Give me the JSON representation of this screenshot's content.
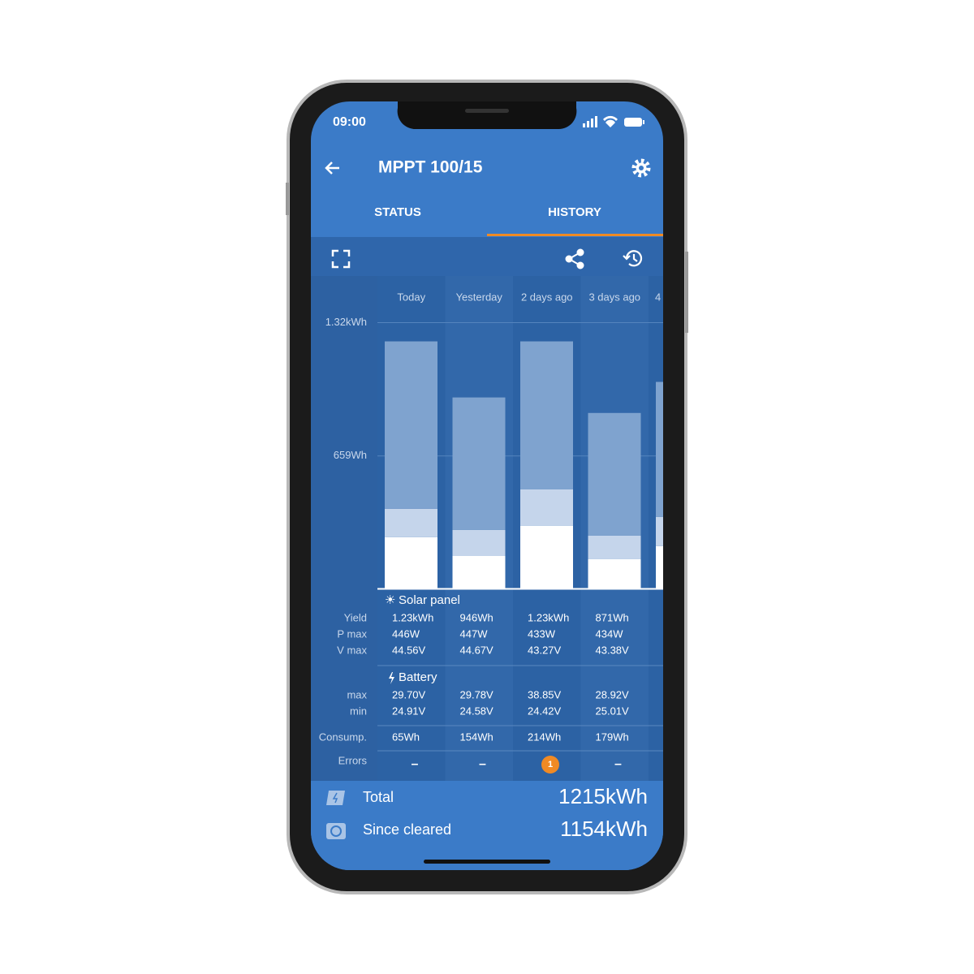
{
  "status_bar": {
    "time": "09:00"
  },
  "header": {
    "title": "MPPT 100/15"
  },
  "tabs": [
    "STATUS",
    "HISTORY"
  ],
  "chart_data": {
    "type": "bar",
    "stacked": true,
    "categories": [
      "Today",
      "Yesterday",
      "2 days ago",
      "3 days ago",
      "4"
    ],
    "ylim": [
      0,
      1350
    ],
    "yticks": [
      {
        "value": 1320,
        "label": "1.32kWh"
      },
      {
        "value": 659,
        "label": "659Wh"
      }
    ],
    "grid": true,
    "series": [
      {
        "color": "#ffffff",
        "values": [
          256,
          163,
          312,
          147,
          212
        ]
      },
      {
        "color": "#c5d5eb",
        "values": [
          141,
          129,
          182,
          117,
          145
        ]
      },
      {
        "color": "#7fa3cf",
        "values": [
          830,
          657,
          733,
          608,
          669
        ]
      }
    ]
  },
  "table": {
    "solar": {
      "title": "Solar panel",
      "rows": [
        {
          "label": "Yield",
          "values": [
            "1.23kWh",
            "946Wh",
            "1.23kWh",
            "871Wh"
          ]
        },
        {
          "label": "P max",
          "values": [
            "446W",
            "447W",
            "433W",
            "434W"
          ]
        },
        {
          "label": "V max",
          "values": [
            "44.56V",
            "44.67V",
            "43.27V",
            "43.38V"
          ]
        }
      ]
    },
    "battery": {
      "title": "Battery",
      "rows": [
        {
          "label": "max",
          "values": [
            "29.70V",
            "29.78V",
            "38.85V",
            "28.92V"
          ]
        },
        {
          "label": "min",
          "values": [
            "24.91V",
            "24.58V",
            "24.42V",
            "25.01V"
          ]
        }
      ]
    },
    "consumption": {
      "label": "Consump.",
      "values": [
        "65Wh",
        "154Wh",
        "214Wh",
        "179Wh"
      ]
    },
    "errors": {
      "label": "Errors",
      "values": [
        "–",
        "–",
        "1",
        "–"
      ]
    }
  },
  "totals": [
    {
      "label": "Total",
      "value": "1215kWh"
    },
    {
      "label": "Since cleared",
      "value": "1154kWh"
    }
  ]
}
